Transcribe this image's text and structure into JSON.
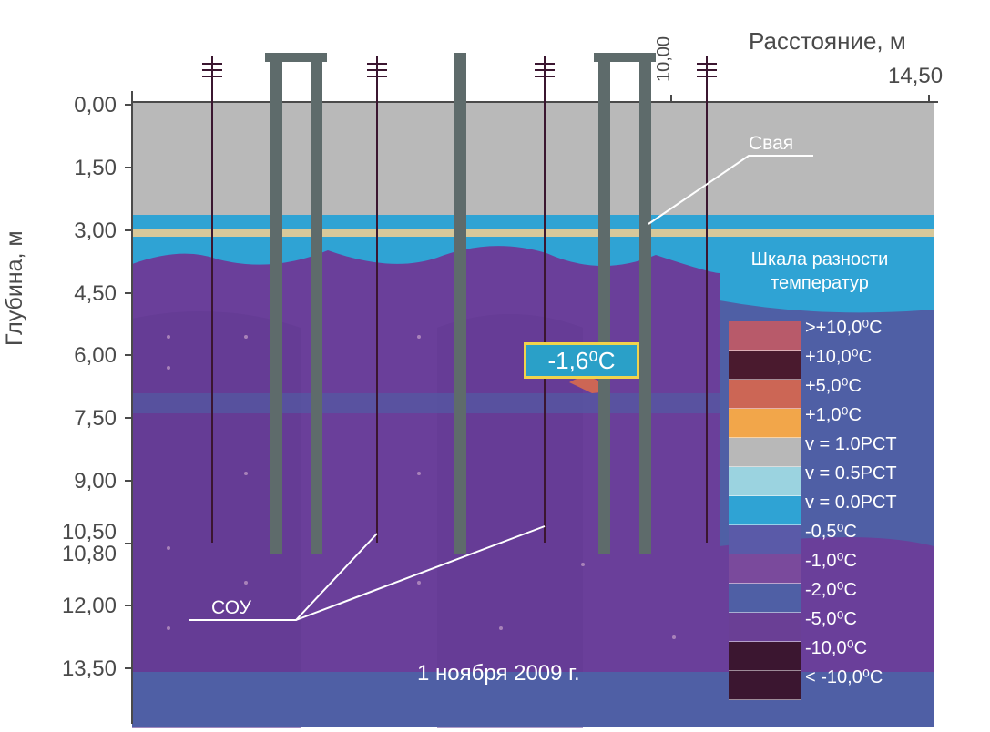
{
  "axis": {
    "x_title": "Расстояние, м",
    "x_tick_10": "10,00",
    "x_tick_14": "14,50",
    "y_title": "Глубина, м",
    "y_ticks": [
      "0,00",
      "1,50",
      "3,00",
      "4,50",
      "6,00",
      "7,50",
      "9,00",
      "10,50",
      "10,80",
      "12,00",
      "13,50"
    ]
  },
  "labels": {
    "pile": "Свая",
    "cooling_devices": "СОУ",
    "callout": "-1,6⁰С",
    "date": "1 ноября 2009 г."
  },
  "legend": {
    "title_line1": "Шкала разности",
    "title_line2": "температур",
    "items": [
      {
        "label": ">+10,0⁰С",
        "color": "#b85a6a"
      },
      {
        "label": "+10,0⁰С",
        "color": "#4a1a2e"
      },
      {
        "label": "+5,0⁰С",
        "color": "#cc6655"
      },
      {
        "label": "+1,0⁰С",
        "color": "#f2a64a"
      },
      {
        "label": "v = 1.0PCT",
        "color": "#b8b8b8"
      },
      {
        "label": "v = 0.5PCT",
        "color": "#9bd3e0"
      },
      {
        "label": "v = 0.0PCT",
        "color": "#2fa3d4"
      },
      {
        "label": "-0,5⁰С",
        "color": "#5a5aa8"
      },
      {
        "label": "-1,0⁰С",
        "color": "#7a4a9c"
      },
      {
        "label": "-2,0⁰С",
        "color": "#4f5fa5"
      },
      {
        "label": "-5,0⁰С",
        "color": "#6a3f95"
      },
      {
        "label": "-10,0⁰С",
        "color": "#3b1630"
      },
      {
        "label": "< -10,0⁰С",
        "color": "#3b1630"
      }
    ]
  },
  "colors": {
    "frozen_soil": "#6a3f9a",
    "thawed_top": "#b9b9b9",
    "water_band": "#2fa3d4",
    "pile": "#5e6b6b",
    "callout_border": "#f1d34c"
  }
}
